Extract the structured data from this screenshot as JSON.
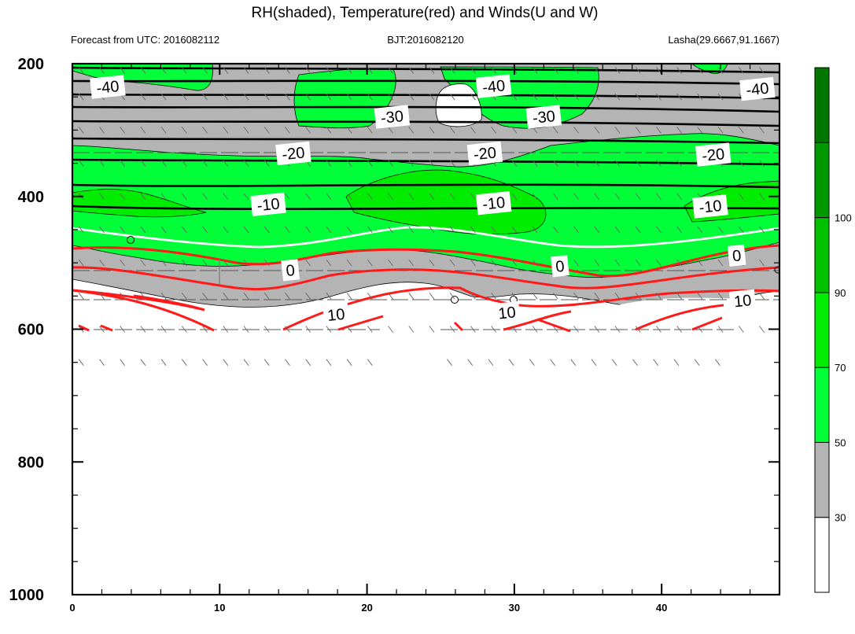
{
  "chart_data": {
    "type": "contour",
    "title": "RH(shaded), Temperature(red) and Winds(U and W)",
    "subtitle_left": "Forecast from UTC: 2016082112",
    "subtitle_center": "BJT:2016082120",
    "subtitle_right": "Lasha(29.6667,91.1667)",
    "xlim": [
      0,
      48
    ],
    "ylim": [
      1000,
      200
    ],
    "x_ticks": [
      0,
      10,
      20,
      30,
      40
    ],
    "x_tick_labels": [
      "0",
      "10",
      "20",
      "30",
      "40"
    ],
    "y_ticks": [
      200,
      400,
      600,
      800,
      1000
    ],
    "y_tick_labels": [
      "200",
      "400",
      "600",
      "800",
      "1000"
    ],
    "colorbar": {
      "colors": [
        "#ffffff",
        "#b4b4b4",
        "#00ff38",
        "#00ec00",
        "#00c000",
        "#009800",
        "#007800"
      ],
      "levels": [
        "30",
        "50",
        "70",
        "90",
        "100"
      ]
    },
    "temperature_contour_labels": [
      {
        "text": "-40",
        "x": 2.4,
        "p": 235
      },
      {
        "text": "-40",
        "x": 28.6,
        "p": 234
      },
      {
        "text": "-40",
        "x": 46.5,
        "p": 238
      },
      {
        "text": "-30",
        "x": 21.7,
        "p": 280
      },
      {
        "text": "-30",
        "x": 32.0,
        "p": 280
      },
      {
        "text": "-20",
        "x": 15.0,
        "p": 335
      },
      {
        "text": "-20",
        "x": 28.0,
        "p": 335
      },
      {
        "text": "-20",
        "x": 43.5,
        "p": 337
      },
      {
        "text": "-10",
        "x": 13.3,
        "p": 412
      },
      {
        "text": "-10",
        "x": 28.6,
        "p": 410
      },
      {
        "text": "-10",
        "x": 43.3,
        "p": 415
      },
      {
        "text": "0",
        "x": 14.8,
        "p": 511
      },
      {
        "text": "0",
        "x": 33.1,
        "p": 505
      },
      {
        "text": "0",
        "x": 45.1,
        "p": 489
      },
      {
        "text": "10",
        "x": 17.9,
        "p": 578
      },
      {
        "text": "10",
        "x": 29.5,
        "p": 575
      },
      {
        "text": "10",
        "x": 45.5,
        "p": 557
      }
    ]
  }
}
